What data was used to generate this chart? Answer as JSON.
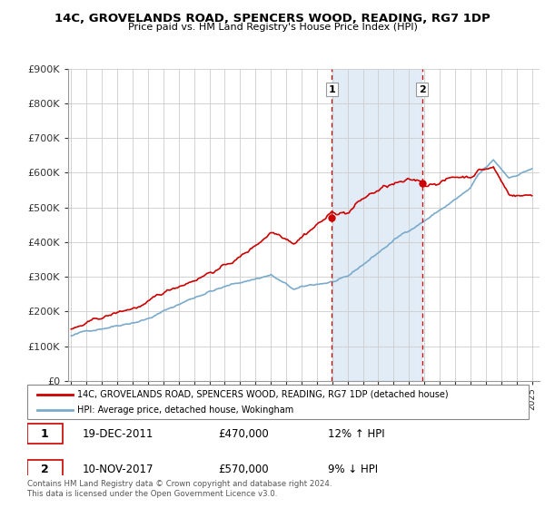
{
  "title": "14C, GROVELANDS ROAD, SPENCERS WOOD, READING, RG7 1DP",
  "subtitle": "Price paid vs. HM Land Registry's House Price Index (HPI)",
  "ylim": [
    0,
    900000
  ],
  "yticks": [
    0,
    100000,
    200000,
    300000,
    400000,
    500000,
    600000,
    700000,
    800000,
    900000
  ],
  "ytick_labels": [
    "£0",
    "£100K",
    "£200K",
    "£300K",
    "£400K",
    "£500K",
    "£600K",
    "£700K",
    "£800K",
    "£900K"
  ],
  "property_color": "#cc0000",
  "hpi_color": "#7aaacc",
  "legend_label_property": "14C, GROVELANDS ROAD, SPENCERS WOOD, READING, RG7 1DP (detached house)",
  "legend_label_hpi": "HPI: Average price, detached house, Wokingham",
  "annotation1_date": "19-DEC-2011",
  "annotation1_price": "£470,000",
  "annotation1_hpi": "12% ↑ HPI",
  "annotation2_date": "10-NOV-2017",
  "annotation2_price": "£570,000",
  "annotation2_hpi": "9% ↓ HPI",
  "footer": "Contains HM Land Registry data © Crown copyright and database right 2024.\nThis data is licensed under the Open Government Licence v3.0.",
  "vline1_x": 2011.97,
  "vline2_x": 2017.86,
  "marker1_prop_y": 470000,
  "marker2_prop_y": 570000,
  "shade_x1": 2011.97,
  "shade_x2": 2017.86,
  "xlim_left": 1994.8,
  "xlim_right": 2025.5
}
